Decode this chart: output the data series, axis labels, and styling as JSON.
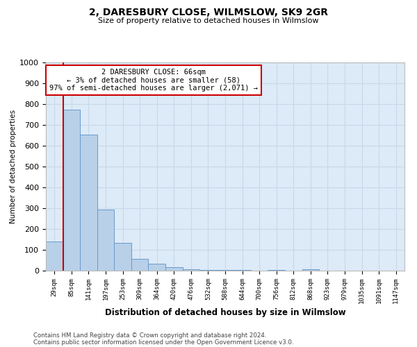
{
  "title": "2, DARESBURY CLOSE, WILMSLOW, SK9 2GR",
  "subtitle": "Size of property relative to detached houses in Wilmslow",
  "xlabel": "Distribution of detached houses by size in Wilmslow",
  "ylabel": "Number of detached properties",
  "bin_labels": [
    "29sqm",
    "85sqm",
    "141sqm",
    "197sqm",
    "253sqm",
    "309sqm",
    "364sqm",
    "420sqm",
    "476sqm",
    "532sqm",
    "588sqm",
    "644sqm",
    "700sqm",
    "756sqm",
    "812sqm",
    "868sqm",
    "923sqm",
    "979sqm",
    "1035sqm",
    "1091sqm",
    "1147sqm"
  ],
  "bar_values": [
    140,
    775,
    655,
    295,
    135,
    57,
    32,
    17,
    8,
    5,
    5,
    5,
    0,
    5,
    0,
    8,
    0,
    0,
    0,
    0,
    0
  ],
  "bar_color": "#b8d0e8",
  "bar_edgecolor": "#6699cc",
  "annotation_title": "2 DARESBURY CLOSE: 66sqm",
  "annotation_line1": "← 3% of detached houses are smaller (58)",
  "annotation_line2": "97% of semi-detached houses are larger (2,071) →",
  "annotation_box_color": "#ffffff",
  "annotation_box_edgecolor": "#cc0000",
  "vline_color": "#cc0000",
  "ylim": [
    0,
    1000
  ],
  "yticks": [
    0,
    100,
    200,
    300,
    400,
    500,
    600,
    700,
    800,
    900,
    1000
  ],
  "grid_color": "#c8d8e8",
  "background_color": "#ddeaf7",
  "fig_background": "#ffffff",
  "footer_line1": "Contains HM Land Registry data © Crown copyright and database right 2024.",
  "footer_line2": "Contains public sector information licensed under the Open Government Licence v3.0."
}
